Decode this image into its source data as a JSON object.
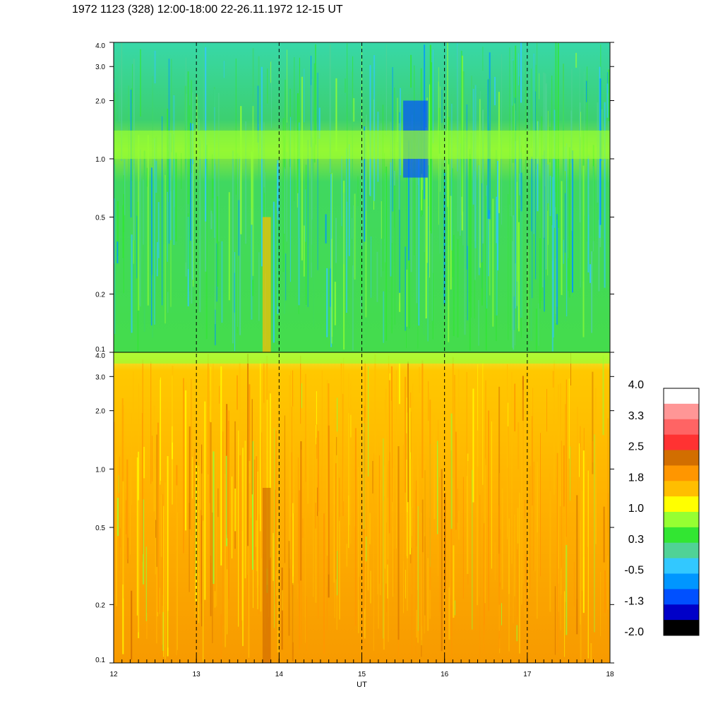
{
  "title": "1972 1123 (328) 12:00-18:00 22-26.11.1972  12-15 UT",
  "chart_data": [
    {
      "type": "heatmap",
      "panel": "upper",
      "ylim": [
        0.1,
        4.0
      ],
      "yscale": "log",
      "yticks": [
        "4.0",
        "3.0",
        "2.0",
        "1.0",
        "0.5",
        "0.2",
        "0.1"
      ],
      "yticks_values": [
        4.0,
        3.0,
        2.0,
        1.0,
        0.5,
        0.2,
        0.1
      ],
      "xlim": [
        12,
        18
      ],
      "dominant_level": 0.3,
      "features": [
        {
          "x_range": [
            13.8,
            13.9
          ],
          "y_range": [
            0.1,
            0.5
          ],
          "level": 1.8
        },
        {
          "x_range": [
            15.5,
            15.8
          ],
          "y_range": [
            0.8,
            2.0
          ],
          "level": -1.3
        },
        {
          "x_range": [
            12.0,
            18.0
          ],
          "y_range": [
            1.0,
            1.4
          ],
          "level": 1.0
        }
      ]
    },
    {
      "type": "heatmap",
      "panel": "lower",
      "ylim": [
        0.1,
        4.0
      ],
      "yscale": "log",
      "yticks": [
        "4.0",
        "3.0",
        "2.0",
        "1.0",
        "0.5",
        "0.2",
        "0.1"
      ],
      "yticks_values": [
        4.0,
        3.0,
        2.0,
        1.0,
        0.5,
        0.2,
        0.1
      ],
      "xlim": [
        12,
        18
      ],
      "xlabel": "UT",
      "xticks": [
        "12",
        "13",
        "14",
        "15",
        "16",
        "17",
        "18"
      ],
      "xticks_values": [
        12,
        13,
        14,
        15,
        16,
        17,
        18
      ],
      "dominant_level": 1.8,
      "features": [
        {
          "x_range": [
            13.8,
            13.9
          ],
          "y_range": [
            0.1,
            0.8
          ],
          "level": 2.5
        },
        {
          "x_range": [
            12.0,
            18.0
          ],
          "y_range": [
            3.5,
            4.0
          ],
          "level": 1.0
        }
      ]
    }
  ],
  "colorbar": {
    "labels": [
      "4.0",
      "3.3",
      "2.5",
      "1.8",
      "1.0",
      "0.3",
      "-0.5",
      "-1.3",
      "-2.0"
    ],
    "colors": [
      "#ffffff",
      "#ff9696",
      "#ff6464",
      "#ff3232",
      "#d26e00",
      "#ff9600",
      "#ffbe00",
      "#ffff00",
      "#96ff32",
      "#32e632",
      "#50d296",
      "#32c8ff",
      "#0096ff",
      "#0050ff",
      "#0000c8",
      "#000000"
    ]
  },
  "colors": {
    "upper_base": "#32e632",
    "lower_base": "#ffbe00",
    "dashed_line": "#000000"
  }
}
